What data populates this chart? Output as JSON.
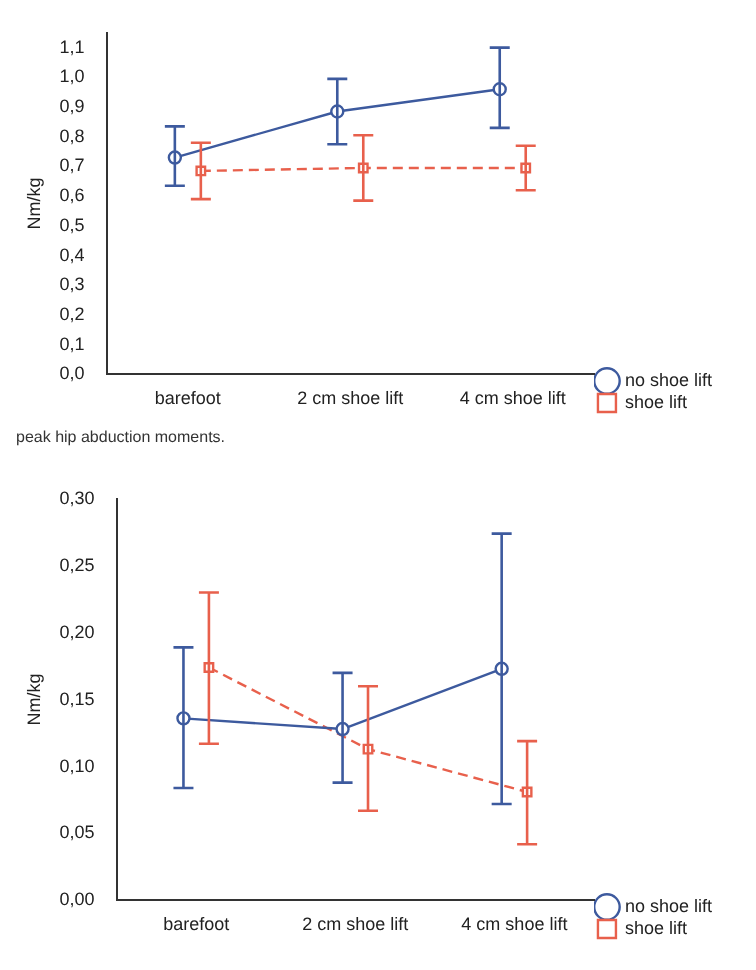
{
  "chart_data": [
    {
      "type": "line",
      "ylabel": "Nm/kg",
      "categories": [
        "barefoot",
        "2 cm shoe lift",
        "4 cm shoe lift"
      ],
      "ylim": [
        0,
        1.15
      ],
      "yticks": [
        {
          "value": 0,
          "label": "0,0"
        },
        {
          "value": 0.1,
          "label": "0,1"
        },
        {
          "value": 0.2,
          "label": "0,2"
        },
        {
          "value": 0.3,
          "label": "0,3"
        },
        {
          "value": 0.4,
          "label": "0,4"
        },
        {
          "value": 0.5,
          "label": "0,5"
        },
        {
          "value": 0.6,
          "label": "0,6"
        },
        {
          "value": 0.7,
          "label": "0,7"
        },
        {
          "value": 0.8,
          "label": "0,8"
        },
        {
          "value": 0.9,
          "label": "0,9"
        },
        {
          "value": 1.0,
          "label": "1,0"
        },
        {
          "value": 1.1,
          "label": "1,1"
        }
      ],
      "grid": false,
      "legend": "bottom right",
      "annotations": [
        "peak hip abduction moments."
      ],
      "series": [
        {
          "name": "no shoe lift",
          "color": "#3d5a9e",
          "marker": "circle",
          "line_style": "solid",
          "values": [
            0.73,
            0.885,
            0.96
          ],
          "errors": [
            [
              0.635,
              0.835
            ],
            [
              0.775,
              0.995
            ],
            [
              0.83,
              1.1
            ]
          ]
        },
        {
          "name": "shoe lift",
          "color": "#e8604c",
          "marker": "square",
          "line_style": "dashed",
          "values": [
            0.685,
            0.695,
            0.695
          ],
          "errors": [
            [
              0.59,
              0.78
            ],
            [
              0.585,
              0.805
            ],
            [
              0.62,
              0.77
            ]
          ]
        }
      ]
    },
    {
      "type": "line",
      "ylabel": "Nm/kg",
      "categories": [
        "barefoot",
        "2 cm shoe lift",
        "4 cm shoe lift"
      ],
      "ylim": [
        0,
        0.3
      ],
      "yticks": [
        {
          "value": 0,
          "label": "0,00"
        },
        {
          "value": 0.05,
          "label": "0,05"
        },
        {
          "value": 0.1,
          "label": "0,10"
        },
        {
          "value": 0.15,
          "label": "0,15"
        },
        {
          "value": 0.2,
          "label": "0,20"
        },
        {
          "value": 0.25,
          "label": "0,25"
        },
        {
          "value": 0.3,
          "label": "0,30"
        }
      ],
      "grid": false,
      "legend": "bottom right",
      "series": [
        {
          "name": "no shoe lift",
          "color": "#3d5a9e",
          "marker": "circle",
          "line_style": "solid",
          "values": [
            0.136,
            0.128,
            0.173
          ],
          "errors": [
            [
              0.084,
              0.189
            ],
            [
              0.088,
              0.17
            ],
            [
              0.072,
              0.274
            ]
          ]
        },
        {
          "name": "shoe lift",
          "color": "#e8604c",
          "marker": "square",
          "line_style": "dashed",
          "values": [
            0.174,
            0.113,
            0.081
          ],
          "errors": [
            [
              0.117,
              0.23
            ],
            [
              0.067,
              0.16
            ],
            [
              0.042,
              0.119
            ]
          ]
        }
      ]
    }
  ]
}
